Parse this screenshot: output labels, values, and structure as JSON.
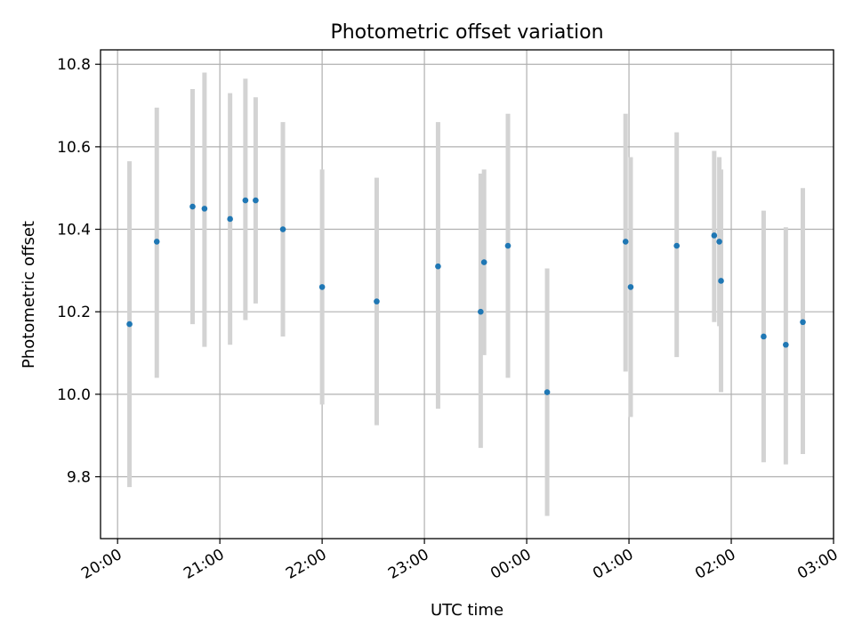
{
  "chart_data": {
    "type": "scatter",
    "title": "Photometric offset variation",
    "xlabel": "UTC time",
    "ylabel": "Photometric offset",
    "x_unit": "time of day (UTC), spanning midnight",
    "xlim": [
      "19:50",
      "03:00"
    ],
    "ylim": [
      9.65,
      10.835
    ],
    "x_ticks": [
      "20:00",
      "21:00",
      "22:00",
      "23:00",
      "00:00",
      "01:00",
      "02:00",
      "03:00"
    ],
    "y_ticks": [
      "9.8",
      "10.0",
      "10.2",
      "10.4",
      "10.6",
      "10.8"
    ],
    "grid": true,
    "point_color": "#1f77b4",
    "errorbar_color": "#d3d3d3",
    "points": [
      {
        "x": "20:07",
        "y": 10.17,
        "ylow": 9.775,
        "yhigh": 10.565
      },
      {
        "x": "20:23",
        "y": 10.37,
        "ylow": 10.04,
        "yhigh": 10.695
      },
      {
        "x": "20:44",
        "y": 10.455,
        "ylow": 10.17,
        "yhigh": 10.74
      },
      {
        "x": "20:51",
        "y": 10.45,
        "ylow": 10.115,
        "yhigh": 10.78
      },
      {
        "x": "21:06",
        "y": 10.425,
        "ylow": 10.12,
        "yhigh": 10.73
      },
      {
        "x": "21:15",
        "y": 10.47,
        "ylow": 10.18,
        "yhigh": 10.765
      },
      {
        "x": "21:21",
        "y": 10.47,
        "ylow": 10.22,
        "yhigh": 10.72
      },
      {
        "x": "21:37",
        "y": 10.4,
        "ylow": 10.14,
        "yhigh": 10.66
      },
      {
        "x": "22:00",
        "y": 10.26,
        "ylow": 9.975,
        "yhigh": 10.545
      },
      {
        "x": "22:32",
        "y": 10.225,
        "ylow": 9.925,
        "yhigh": 10.525
      },
      {
        "x": "23:08",
        "y": 10.31,
        "ylow": 9.965,
        "yhigh": 10.66
      },
      {
        "x": "23:33",
        "y": 10.2,
        "ylow": 9.87,
        "yhigh": 10.535
      },
      {
        "x": "23:35",
        "y": 10.32,
        "ylow": 10.095,
        "yhigh": 10.545
      },
      {
        "x": "23:49",
        "y": 10.36,
        "ylow": 10.04,
        "yhigh": 10.68
      },
      {
        "x": "00:12",
        "y": 10.005,
        "ylow": 9.705,
        "yhigh": 10.305
      },
      {
        "x": "00:58",
        "y": 10.37,
        "ylow": 10.055,
        "yhigh": 10.68
      },
      {
        "x": "01:01",
        "y": 10.26,
        "ylow": 9.945,
        "yhigh": 10.575
      },
      {
        "x": "01:28",
        "y": 10.36,
        "ylow": 10.09,
        "yhigh": 10.635
      },
      {
        "x": "01:50",
        "y": 10.385,
        "ylow": 10.175,
        "yhigh": 10.59
      },
      {
        "x": "01:53",
        "y": 10.37,
        "ylow": 10.165,
        "yhigh": 10.575
      },
      {
        "x": "01:54",
        "y": 10.275,
        "ylow": 10.005,
        "yhigh": 10.545
      },
      {
        "x": "02:19",
        "y": 10.14,
        "ylow": 9.835,
        "yhigh": 10.445
      },
      {
        "x": "02:32",
        "y": 10.12,
        "ylow": 9.83,
        "yhigh": 10.405
      },
      {
        "x": "02:42",
        "y": 10.175,
        "ylow": 9.855,
        "yhigh": 10.5
      }
    ]
  }
}
